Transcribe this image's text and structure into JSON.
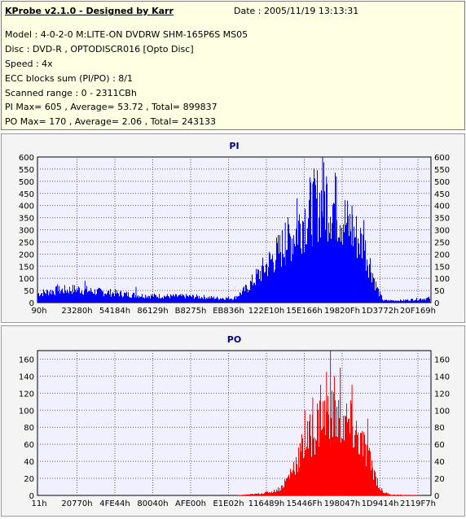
{
  "info": {
    "title": "KProbe v2.1.0 - Designed by Karr",
    "date": "Date : 2005/11/19 13:13:31",
    "lines": [
      "Model : 4-0-2-0 M:LITE-ON DVDRW SHM-165P6S MS05",
      "Disc : DVD-R , OPTODISCR016 [Opto Disc]",
      "Speed : 4x",
      "ECC blocks sum (PI/PO) : 8/1",
      "Scanned range : 0 - 2311CBh",
      "PI Max= 605 , Average= 53.72 , Total= 899837",
      "PO Max= 170 , Average= 2.06 , Total= 243133"
    ]
  },
  "colors": {
    "pi": "#0000ff",
    "po": "#ff0000",
    "plot_bg": "#f0f0ff",
    "grid": "#5a5a8a"
  },
  "chart_data": [
    {
      "type": "area",
      "title": "PI",
      "color": "#0000ff",
      "ylim": [
        0,
        600
      ],
      "yticks": [
        0,
        50,
        100,
        150,
        200,
        250,
        300,
        350,
        400,
        450,
        500,
        550,
        600
      ],
      "xticks": [
        "90h",
        "23280h",
        "54184h",
        "86129h",
        "B8275h",
        "EB836h",
        "122E10h",
        "15E166h",
        "19820Fh",
        "1D3772h",
        "20F169h"
      ],
      "grid": true,
      "max": 605,
      "x_fraction": [
        0,
        0.03,
        0.06,
        0.1,
        0.14,
        0.18,
        0.22,
        0.26,
        0.3,
        0.34,
        0.38,
        0.42,
        0.46,
        0.5,
        0.53,
        0.56,
        0.59,
        0.62,
        0.65,
        0.67,
        0.69,
        0.71,
        0.73,
        0.75,
        0.77,
        0.79,
        0.81,
        0.83,
        0.85,
        0.86,
        0.87,
        0.88,
        0.9,
        0.93,
        0.96,
        1.0
      ],
      "values": [
        40,
        50,
        55,
        60,
        50,
        45,
        38,
        32,
        30,
        28,
        28,
        25,
        20,
        20,
        60,
        120,
        180,
        240,
        300,
        360,
        400,
        440,
        460,
        440,
        400,
        340,
        300,
        250,
        150,
        80,
        40,
        10,
        10,
        10,
        15,
        20
      ],
      "peaks": [
        [
          0.05,
          75
        ],
        [
          0.12,
          90
        ],
        [
          0.25,
          65
        ],
        [
          0.63,
          330
        ],
        [
          0.66,
          430
        ],
        [
          0.7,
          490
        ],
        [
          0.725,
          605
        ],
        [
          0.735,
          520
        ],
        [
          0.76,
          520
        ],
        [
          0.8,
          400
        ],
        [
          0.83,
          340
        ]
      ]
    },
    {
      "type": "area",
      "title": "PO",
      "color": "#ff0000",
      "ylim": [
        0,
        170
      ],
      "yticks": [
        0,
        20,
        40,
        60,
        80,
        100,
        120,
        140,
        160
      ],
      "xticks": [
        "11h",
        "20770h",
        "4FE44h",
        "80040h",
        "AFE00h",
        "E1E02h",
        "116489h",
        "15446Fh",
        "198047h",
        "1D9414h",
        "2119F7h"
      ],
      "grid": true,
      "max": 170,
      "x_fraction": [
        0,
        0.5,
        0.56,
        0.6,
        0.62,
        0.64,
        0.66,
        0.68,
        0.7,
        0.72,
        0.74,
        0.76,
        0.78,
        0.8,
        0.82,
        0.84,
        0.86,
        0.87,
        0.88,
        0.9,
        1.0
      ],
      "values": [
        0,
        0,
        2,
        5,
        10,
        25,
        45,
        65,
        80,
        95,
        100,
        98,
        92,
        85,
        70,
        50,
        25,
        10,
        4,
        1,
        0
      ],
      "peaks": [
        [
          0.68,
          100
        ],
        [
          0.7,
          115
        ],
        [
          0.72,
          130
        ],
        [
          0.735,
          145
        ],
        [
          0.745,
          170
        ],
        [
          0.755,
          140
        ],
        [
          0.77,
          150
        ],
        [
          0.8,
          130
        ],
        [
          0.84,
          90
        ]
      ]
    }
  ]
}
